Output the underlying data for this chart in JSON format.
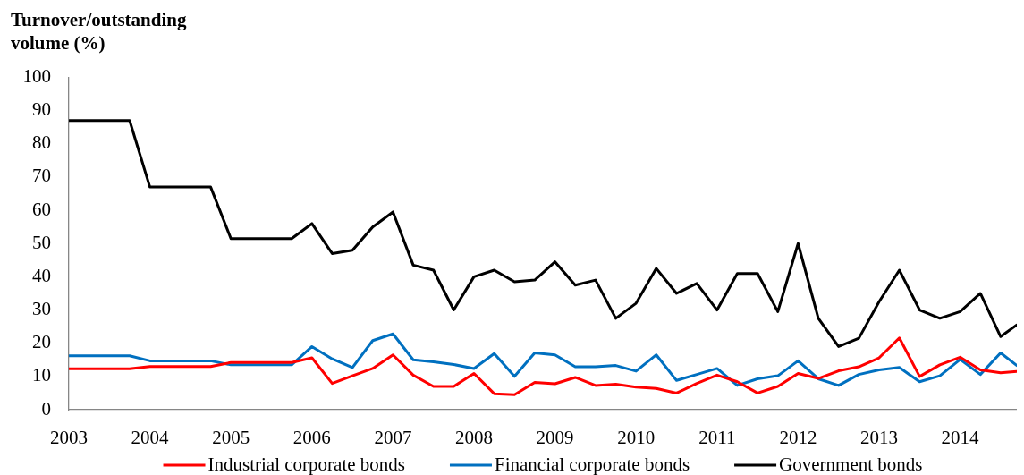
{
  "chart_data": {
    "type": "line",
    "ylabel": "Turnover/outstanding volume (%)",
    "x": [
      2003,
      2003.25,
      2003.5,
      2003.75,
      2004,
      2004.25,
      2004.5,
      2004.75,
      2005,
      2005.25,
      2005.5,
      2005.75,
      2006,
      2006.25,
      2006.5,
      2006.75,
      2007,
      2007.25,
      2007.5,
      2007.75,
      2008,
      2008.25,
      2008.5,
      2008.75,
      2009,
      2009.25,
      2009.5,
      2009.75,
      2010,
      2010.25,
      2010.5,
      2010.75,
      2011,
      2011.25,
      2011.5,
      2011.75,
      2012,
      2012.25,
      2012.5,
      2012.75,
      2013,
      2013.25,
      2013.5,
      2013.75,
      2014,
      2014.25,
      2014.5,
      2014.7
    ],
    "xlim": [
      2003,
      2014.7
    ],
    "xticks": [
      2003,
      2004,
      2005,
      2006,
      2007,
      2008,
      2009,
      2010,
      2011,
      2012,
      2013,
      2014
    ],
    "ylim": [
      0,
      100
    ],
    "yticks": [
      0,
      10,
      20,
      30,
      40,
      50,
      60,
      70,
      80,
      90,
      100
    ],
    "legend": "bottom",
    "series": [
      {
        "name": "Industrial corporate bonds",
        "color": "#ff0000",
        "values": [
          12.3,
          12.3,
          12.3,
          12.3,
          13,
          13,
          13,
          13,
          14.2,
          14.2,
          14.2,
          14.2,
          15.6,
          7.9,
          10.2,
          12.4,
          16.5,
          10.4,
          7,
          7,
          10.9,
          4.8,
          4.5,
          8.2,
          7.8,
          9.7,
          7.3,
          7.7,
          6.8,
          6.4,
          5,
          7.9,
          10.4,
          8.4,
          5,
          7,
          10.9,
          9.4,
          11.7,
          12.9,
          15.6,
          21.6,
          10,
          13.5,
          15.8,
          12,
          11.1,
          11.5
        ]
      },
      {
        "name": "Financial corporate bonds",
        "color": "#0070c0",
        "values": [
          16.2,
          16.2,
          16.2,
          16.2,
          14.7,
          14.7,
          14.7,
          14.7,
          13.5,
          13.5,
          13.5,
          13.5,
          19,
          15.3,
          12.7,
          20.8,
          22.8,
          15,
          14.4,
          13.6,
          12.4,
          16.9,
          10,
          17.1,
          16.5,
          12.9,
          12.9,
          13.3,
          11.6,
          16.5,
          8.8,
          10.6,
          12.4,
          7.3,
          9.3,
          10.2,
          14.7,
          9.3,
          7.3,
          10.6,
          12,
          12.7,
          8.4,
          10.2,
          15.1,
          10.6,
          17.1,
          13.3
        ]
      },
      {
        "name": "Government bonds",
        "color": "#000000",
        "values": [
          87,
          87,
          87,
          87,
          67,
          67,
          67,
          67,
          51.5,
          51.5,
          51.5,
          51.5,
          56,
          47,
          48,
          55,
          59.5,
          43.5,
          42,
          30,
          40,
          42,
          38.5,
          39,
          44.5,
          37.5,
          39,
          27.5,
          32,
          42.5,
          35,
          38,
          30,
          41,
          41,
          29.5,
          50,
          27.5,
          19,
          21.5,
          32.5,
          42,
          30,
          27.5,
          29.5,
          35,
          22,
          25.5
        ]
      }
    ]
  }
}
